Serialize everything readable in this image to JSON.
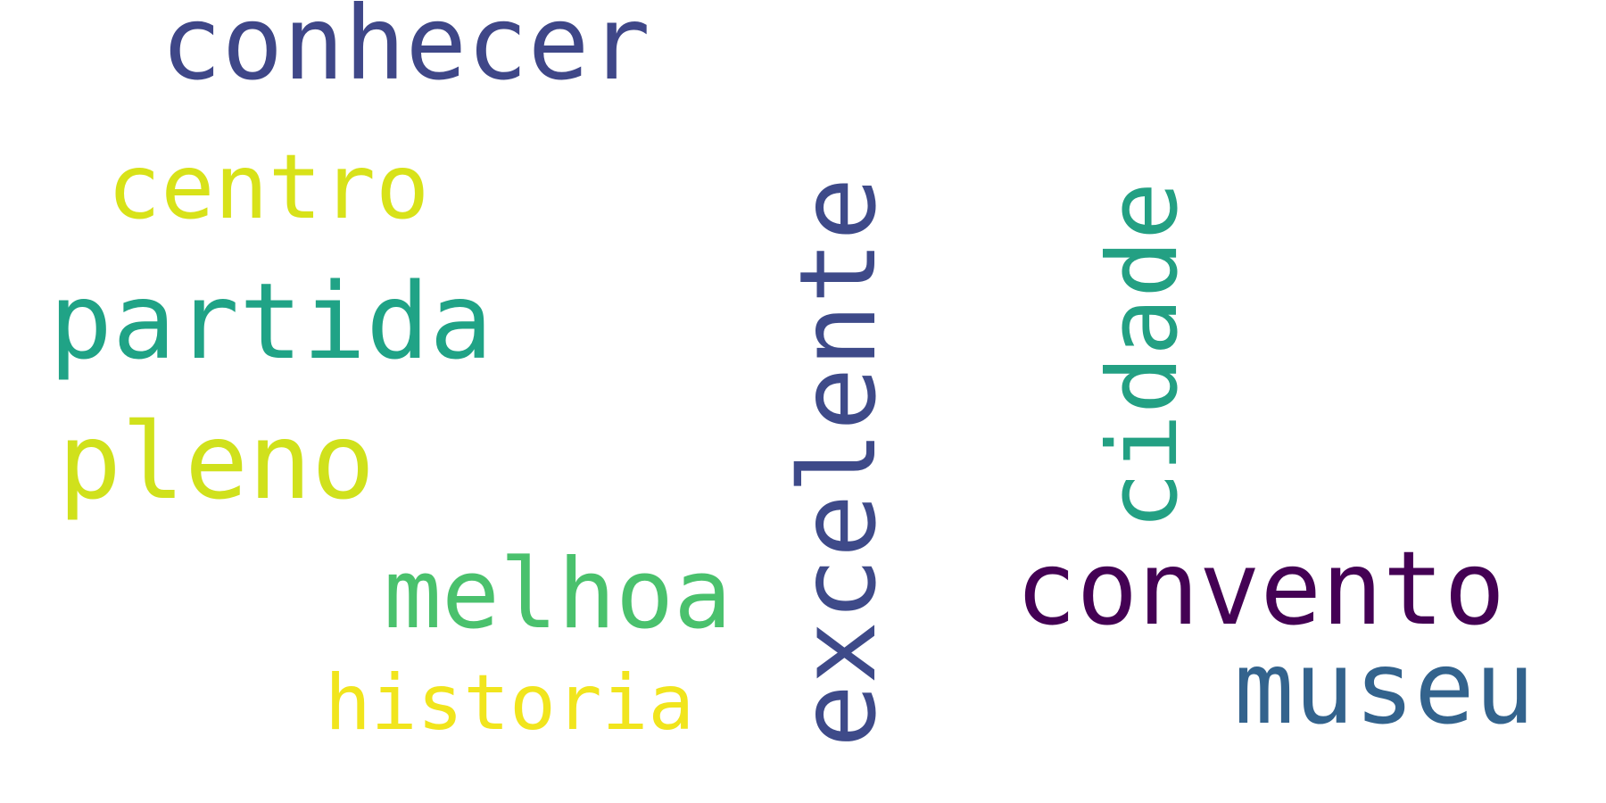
{
  "words": [
    {
      "text": "conhecer",
      "color": "#3F4788"
    },
    {
      "text": "centro",
      "color": "#D8E219"
    },
    {
      "text": "partida",
      "color": "#20A386"
    },
    {
      "text": "pleno",
      "color": "#D0E11C"
    },
    {
      "text": "melhoa",
      "color": "#4AC16D"
    },
    {
      "text": "historia",
      "color": "#F1E51D"
    },
    {
      "text": "excelente",
      "color": "#3E4A89"
    },
    {
      "text": "cidade",
      "color": "#23A083"
    },
    {
      "text": "convento",
      "color": "#440154"
    },
    {
      "text": "museu",
      "color": "#33638D"
    }
  ]
}
